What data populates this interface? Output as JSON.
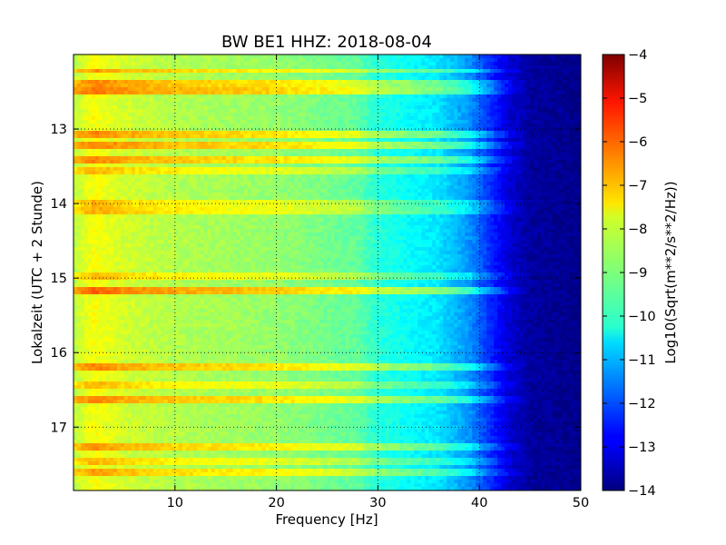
{
  "chart_data": {
    "type": "heatmap",
    "title": "BW BE1 HHZ: 2018-08-04",
    "xlabel": "Frequency [Hz]",
    "ylabel": "Lokalzeit (UTC + 2 Stunde)",
    "colorbar_label": "Log10(Sqrt(m**2/s**2/Hz))",
    "colormap": "jet",
    "xlim": [
      0,
      50
    ],
    "ylim": [
      17.85,
      12.0
    ],
    "y_inverted": true,
    "x_ticks": [
      10,
      20,
      30,
      40,
      50
    ],
    "x_tick_labels": [
      "10",
      "20",
      "30",
      "40",
      "50"
    ],
    "y_ticks": [
      13,
      14,
      15,
      16,
      17
    ],
    "y_tick_labels": [
      "13",
      "14",
      "15",
      "16",
      "17"
    ],
    "colorbar_range": [
      -14,
      -4
    ],
    "colorbar_ticks": [
      -4,
      -5,
      -6,
      -7,
      -8,
      -9,
      -10,
      -11,
      -12,
      -13,
      -14
    ],
    "colorbar_tick_labels": [
      "−4",
      "−5",
      "−6",
      "−7",
      "−8",
      "−9",
      "−10",
      "−11",
      "−12",
      "−13",
      "−14"
    ],
    "grid": "dotted",
    "spectrum_profile": [
      {
        "freq": 0,
        "value": -8.4
      },
      {
        "freq": 2,
        "value": -7.8
      },
      {
        "freq": 5,
        "value": -8.2
      },
      {
        "freq": 10,
        "value": -8.5
      },
      {
        "freq": 20,
        "value": -8.8
      },
      {
        "freq": 28,
        "value": -9.3
      },
      {
        "freq": 30,
        "value": -9.9
      },
      {
        "freq": 33,
        "value": -10.2
      },
      {
        "freq": 36,
        "value": -10.5
      },
      {
        "freq": 39,
        "value": -11.3
      },
      {
        "freq": 41,
        "value": -12.3
      },
      {
        "freq": 43,
        "value": -13.2
      },
      {
        "freq": 45,
        "value": -13.7
      },
      {
        "freq": 50,
        "value": -13.9
      }
    ],
    "noise_bands": [
      {
        "time": 12.22,
        "level": 0.7
      },
      {
        "time": 12.38,
        "level": 0.8
      },
      {
        "time": 12.5,
        "level": 0.9
      },
      {
        "time": 13.08,
        "level": 0.8
      },
      {
        "time": 13.2,
        "level": 0.85
      },
      {
        "time": 13.42,
        "level": 0.8
      },
      {
        "time": 13.55,
        "level": 0.5
      },
      {
        "time": 13.98,
        "level": 0.5
      },
      {
        "time": 14.1,
        "level": 0.55
      },
      {
        "time": 14.98,
        "level": 0.5
      },
      {
        "time": 15.17,
        "level": 1.0
      },
      {
        "time": 16.18,
        "level": 0.8
      },
      {
        "time": 16.45,
        "level": 0.5
      },
      {
        "time": 16.62,
        "level": 0.8
      },
      {
        "time": 17.28,
        "level": 0.7
      },
      {
        "time": 17.45,
        "level": 0.5
      },
      {
        "time": 17.6,
        "level": 0.65
      }
    ]
  }
}
